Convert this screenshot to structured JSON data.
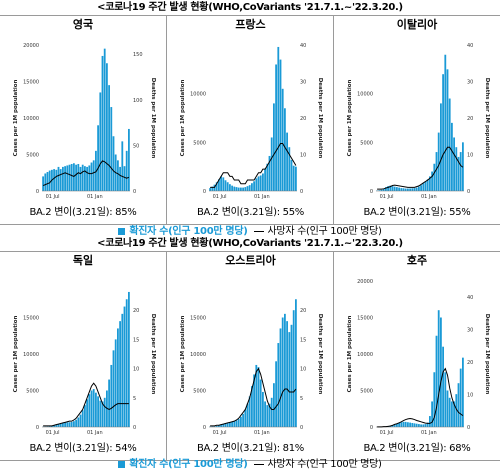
{
  "captions": [
    "<코로나19 주간 발생 현황(WHO,CoVariants '21.7.1.~'22.3.20.)",
    "<코로나19 주간 발생 현황(WHO,CoVariants '21.7.1.~'22.3.20.)"
  ],
  "legend": {
    "bar_label": "확진자 수(인구 100만 명당)",
    "line_label": "사망자 수(인구 100만 명당)"
  },
  "colors": {
    "bars": "#1a9ad6",
    "line": "#000000"
  },
  "chart_data": [
    {
      "type": "bar",
      "country": "영국",
      "stat": "BA.2 변이(3.21일): 85%",
      "ylabel": "Cases per 1M population",
      "y2label": "Deaths per 1M population",
      "xticks": [
        "01 Jul",
        "01 Jan"
      ],
      "ylim": [
        0,
        20000
      ],
      "yticks": [
        0,
        5000,
        10000,
        15000,
        20000
      ],
      "y2lim": [
        0,
        160
      ],
      "y2ticks": [
        0,
        50,
        100,
        150
      ],
      "bars": [
        2000,
        2400,
        2600,
        2800,
        2900,
        3000,
        2900,
        3300,
        3000,
        3300,
        3400,
        3500,
        3600,
        3700,
        3800,
        3600,
        3700,
        3300,
        3600,
        3400,
        3300,
        3500,
        3900,
        4200,
        5500,
        9000,
        13500,
        18500,
        19500,
        17500,
        14500,
        11500,
        7500,
        5000,
        4200,
        3300,
        6800,
        3400,
        5500,
        8500
      ],
      "line": [
        6,
        7,
        8,
        9,
        12,
        14,
        16,
        17,
        18,
        19,
        20,
        19,
        18,
        17,
        16,
        18,
        20,
        19,
        21,
        22,
        20,
        19,
        19,
        20,
        21,
        25,
        30,
        33,
        32,
        30,
        28,
        25,
        22,
        20,
        19,
        17,
        16,
        15,
        14,
        15
      ]
    },
    {
      "type": "bar",
      "country": "프랑스",
      "stat": "BA.2 변이(3.21일): 55%",
      "ylabel": "Cases per 1M population",
      "y2label": "Deaths per 1M population",
      "xticks": [
        "01 Jul",
        "01 Jan"
      ],
      "ylim": [
        0,
        15000
      ],
      "yticks": [
        0,
        5000,
        10000
      ],
      "y2lim": [
        0,
        40
      ],
      "y2ticks": [
        0,
        10,
        20,
        30,
        40
      ],
      "bars": [
        300,
        450,
        650,
        900,
        1200,
        1500,
        1400,
        1100,
        900,
        700,
        550,
        450,
        400,
        350,
        350,
        350,
        400,
        500,
        600,
        800,
        1000,
        1300,
        1500,
        1600,
        1800,
        2300,
        2800,
        3600,
        5500,
        9000,
        13000,
        14800,
        13500,
        10500,
        8500,
        6000,
        4500,
        3200,
        2600,
        2500
      ],
      "line": [
        1,
        1,
        1,
        2,
        3,
        4,
        5,
        5,
        5,
        4,
        4,
        3,
        3,
        3,
        2,
        2,
        2,
        3,
        3,
        3,
        3,
        4,
        5,
        5,
        6,
        6,
        7,
        8,
        9,
        10,
        11,
        12,
        13,
        13,
        12,
        11,
        10,
        9,
        8,
        7
      ]
    },
    {
      "type": "bar",
      "country": "이탈리아",
      "stat": "BA.2 변이(3.21일): 55%",
      "ylabel": "Cases per 1M population",
      "y2label": "Deaths per 1M population",
      "xticks": [
        "01 Jul",
        "01 Jan"
      ],
      "ylim": [
        0,
        15000
      ],
      "yticks": [
        0,
        5000,
        10000
      ],
      "y2lim": [
        0,
        40
      ],
      "y2ticks": [
        0,
        10,
        20,
        30,
        40
      ],
      "bars": [
        50,
        80,
        120,
        250,
        400,
        500,
        550,
        500,
        450,
        400,
        350,
        300,
        280,
        250,
        250,
        260,
        280,
        300,
        350,
        450,
        600,
        800,
        1000,
        1200,
        1500,
        2000,
        2800,
        4000,
        6000,
        9000,
        12000,
        14000,
        12500,
        9500,
        7000,
        5500,
        4500,
        3500,
        4000,
        5000
      ],
      "line": [
        0.5,
        0.5,
        0.5,
        0.6,
        0.8,
        1,
        1.2,
        1.5,
        1.6,
        1.5,
        1.4,
        1.3,
        1.2,
        1.1,
        1,
        1,
        1,
        1,
        1.2,
        1.4,
        1.8,
        2.2,
        2.6,
        3,
        3.5,
        4,
        5,
        6,
        7,
        8.5,
        10,
        11,
        12,
        12,
        11,
        10,
        9,
        8,
        7,
        6.5
      ]
    },
    {
      "type": "bar",
      "country": "독일",
      "stat": "BA.2 변이(3.21일): 54%",
      "ylabel": "Cases per 1M population",
      "y2label": "Deaths per 1M population",
      "xticks": [
        "01 Jul",
        "01 Jan"
      ],
      "ylim": [
        0,
        20000
      ],
      "yticks": [
        0,
        5000,
        10000,
        15000
      ],
      "y2lim": [
        0,
        25
      ],
      "y2ticks": [
        0,
        5,
        10,
        15,
        20
      ],
      "bars": [
        30,
        40,
        60,
        100,
        150,
        250,
        350,
        450,
        500,
        550,
        600,
        650,
        650,
        700,
        800,
        1000,
        1300,
        1700,
        2300,
        3000,
        3800,
        4500,
        5000,
        5200,
        4700,
        4200,
        3600,
        3500,
        4000,
        5000,
        6500,
        8500,
        10500,
        12000,
        13500,
        14500,
        15500,
        16500,
        17500,
        18500
      ],
      "line": [
        0.2,
        0.2,
        0.2,
        0.2,
        0.2,
        0.3,
        0.4,
        0.5,
        0.6,
        0.7,
        0.8,
        0.9,
        1,
        1,
        1.2,
        1.5,
        2,
        2.5,
        3,
        4,
        5,
        6,
        7,
        7.5,
        7,
        6,
        5,
        4,
        3.5,
        3.2,
        3,
        3.2,
        3.5,
        3.8,
        4,
        4,
        4,
        4,
        4,
        4
      ]
    },
    {
      "type": "bar",
      "country": "오스트리아",
      "stat": "BA.2 변이(3.21일): 81%",
      "ylabel": "Cases per 1M population",
      "y2label": "Deaths per 1M population",
      "xticks": [
        "01 Jul",
        "01 Jan"
      ],
      "ylim": [
        0,
        20000
      ],
      "yticks": [
        0,
        5000,
        10000,
        15000
      ],
      "y2lim": [
        0,
        25
      ],
      "y2ticks": [
        0,
        5,
        10,
        15,
        20
      ],
      "bars": [
        50,
        60,
        80,
        150,
        250,
        350,
        450,
        550,
        600,
        650,
        700,
        800,
        900,
        1100,
        1400,
        1800,
        2400,
        3200,
        4200,
        5600,
        7200,
        8500,
        8200,
        6500,
        4800,
        3500,
        3000,
        3200,
        4000,
        6000,
        9000,
        11500,
        13500,
        15000,
        15500,
        14500,
        13000,
        14000,
        16000,
        17500
      ],
      "line": [
        0.2,
        0.2,
        0.2,
        0.3,
        0.3,
        0.4,
        0.5,
        0.6,
        0.7,
        0.8,
        0.9,
        1,
        1.2,
        1.5,
        2,
        2.5,
        3,
        4,
        5,
        6.5,
        8,
        9.5,
        10,
        9,
        7.5,
        6,
        4.5,
        3.5,
        3,
        3,
        3.5,
        4,
        5,
        6,
        6.5,
        6.5,
        6,
        6,
        6,
        6.5
      ]
    },
    {
      "type": "bar",
      "country": "호주",
      "stat": "BA.2 변이(3.21일): 68%",
      "ylabel": "Cases per 1M population",
      "y2label": "Deaths per 1M population",
      "xticks": [
        "01 Jul",
        "01 Jan"
      ],
      "ylim": [
        0,
        20000
      ],
      "yticks": [
        0,
        5000,
        10000,
        15000,
        20000
      ],
      "y2lim": [
        0,
        45
      ],
      "y2ticks": [
        0,
        10,
        20,
        30,
        40
      ],
      "bars": [
        5,
        5,
        10,
        20,
        40,
        80,
        150,
        250,
        350,
        450,
        550,
        650,
        700,
        700,
        650,
        600,
        550,
        500,
        450,
        400,
        350,
        350,
        400,
        600,
        1500,
        3500,
        7500,
        12500,
        16000,
        15000,
        11000,
        7500,
        5000,
        4000,
        3500,
        3500,
        4500,
        6000,
        8000,
        9500
      ],
      "line": [
        0.05,
        0.05,
        0.05,
        0.1,
        0.1,
        0.2,
        0.3,
        0.5,
        0.8,
        1,
        1.3,
        1.6,
        2,
        2.3,
        2.5,
        2.6,
        2.5,
        2.3,
        2,
        1.8,
        1.6,
        1.4,
        1.2,
        1.1,
        1.1,
        1.5,
        3,
        6,
        10,
        14,
        17,
        18,
        16,
        12,
        9,
        7,
        5.5,
        4.5,
        4,
        3.5
      ]
    }
  ]
}
